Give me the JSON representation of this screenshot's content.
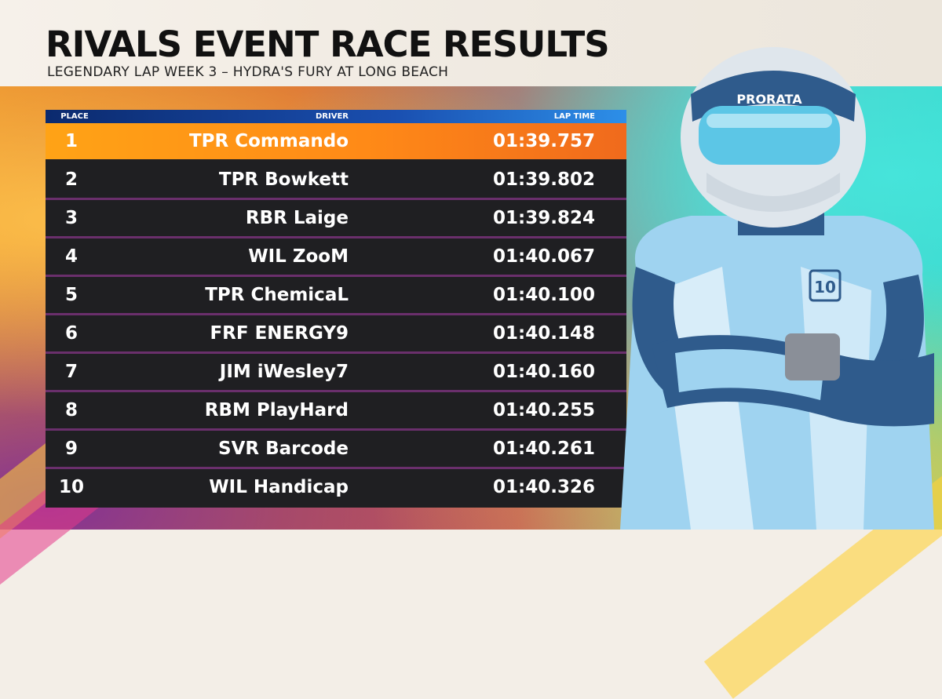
{
  "header": {
    "title": "RIVALS EVENT RACE RESULTS",
    "subtitle": "LEGENDARY LAP WEEK 3 – HYDRA'S FURY AT LONG BEACH"
  },
  "table": {
    "columns": {
      "place": "PLACE",
      "driver": "DRIVER",
      "lap_time": "LAP TIME"
    },
    "rows": [
      {
        "place": "1",
        "driver": "TPR Commando",
        "time": "01:39.757"
      },
      {
        "place": "2",
        "driver": "TPR Bowkett",
        "time": "01:39.802"
      },
      {
        "place": "3",
        "driver": "RBR Laige",
        "time": "01:39.824"
      },
      {
        "place": "4",
        "driver": "WIL ZooM",
        "time": "01:40.067"
      },
      {
        "place": "5",
        "driver": "TPR ChemicaL",
        "time": "01:40.100"
      },
      {
        "place": "6",
        "driver": "FRF ENERGY9",
        "time": "01:40.148"
      },
      {
        "place": "7",
        "driver": "JIM iWesley7",
        "time": "01:40.160"
      },
      {
        "place": "8",
        "driver": "RBM PlayHard",
        "time": "01:40.255"
      },
      {
        "place": "9",
        "driver": "SVR Barcode",
        "time": "01:40.261"
      },
      {
        "place": "10",
        "driver": "WIL Handicap",
        "time": "01:40.326"
      }
    ]
  },
  "driver_illustration": {
    "helmet_logo": "PRORATA",
    "suit_badge": "10",
    "colors": {
      "suit_light": "#9fd3f0",
      "suit_dark": "#2f5b8c",
      "visor": "#5cc6e6"
    }
  },
  "colors": {
    "highlight": "#ff8a17",
    "header_bar": "#1a4fb0",
    "row_bg": "#1f1f22",
    "divider": "#6a2f6c"
  }
}
